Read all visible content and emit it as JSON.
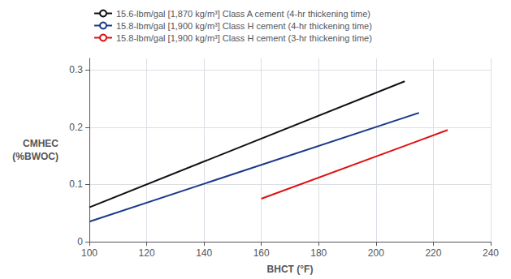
{
  "chart_data": {
    "type": "line",
    "xlabel": "BHCT (°F)",
    "ylabel": "CMHEC\n(%BWOC)",
    "series": [
      {
        "name": "15.6-lbm/gal [1,870 kg/m³] Class A cement (4-hr thickening time)",
        "color": "#111111",
        "x": [
          100,
          210
        ],
        "values": [
          0.06,
          0.28
        ]
      },
      {
        "name": "15.8-lbm/gal [1,900 kg/m³] Class H cement (4-hr thickening time)",
        "color": "#1a3a8a",
        "x": [
          100,
          215
        ],
        "values": [
          0.035,
          0.225
        ]
      },
      {
        "name": "15.8-lbm/gal [1,900 kg/m³] Class H cement (3-hr thickening time)",
        "color": "#dd1111",
        "x": [
          160,
          225
        ],
        "values": [
          0.075,
          0.195
        ]
      }
    ],
    "xlim": [
      100,
      240
    ],
    "ylim": [
      0,
      0.32
    ],
    "xticks": [
      100,
      120,
      140,
      160,
      180,
      200,
      220,
      240
    ],
    "yticks": [
      0,
      0.1,
      0.2,
      0.3
    ],
    "grid": true,
    "legend": "upper left"
  }
}
